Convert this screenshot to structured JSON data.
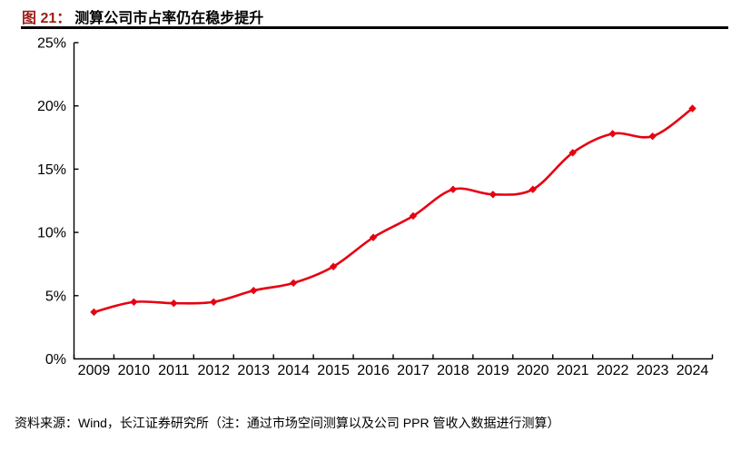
{
  "header": {
    "figure_label": "图 21：",
    "title": "测算公司市占率仍在稳步提升"
  },
  "footer": {
    "source_note": "资料来源：Wind，长江证券研究所（注：通过市场空间测算以及公司 PPR 管收入数据进行测算）"
  },
  "colors": {
    "figure_label_red": "#9e1b14",
    "line_red": "#e60012",
    "axis_black": "#000000",
    "title_rule_black": "#000000"
  },
  "chart_data": {
    "type": "line",
    "title": "测算公司市占率仍在稳步提升",
    "categories": [
      "2009",
      "2010",
      "2011",
      "2012",
      "2013",
      "2014",
      "2015",
      "2016",
      "2017",
      "2018",
      "2019",
      "2020",
      "2021",
      "2022",
      "2023",
      "2024"
    ],
    "values": [
      3.7,
      4.5,
      4.4,
      4.5,
      5.4,
      6.0,
      7.3,
      9.6,
      11.3,
      13.4,
      13.0,
      13.4,
      16.3,
      17.8,
      17.6,
      19.8
    ],
    "series_name": "测算公司市占率",
    "xlabel": "",
    "ylabel": "",
    "ylim": [
      0,
      25
    ],
    "ytick_step": 5,
    "ytick_labels": [
      "0%",
      "5%",
      "10%",
      "15%",
      "20%",
      "25%"
    ],
    "grid": false,
    "legend_position": "none",
    "marker": "diamond",
    "line_smooth": true,
    "line_color": "#e60012"
  }
}
